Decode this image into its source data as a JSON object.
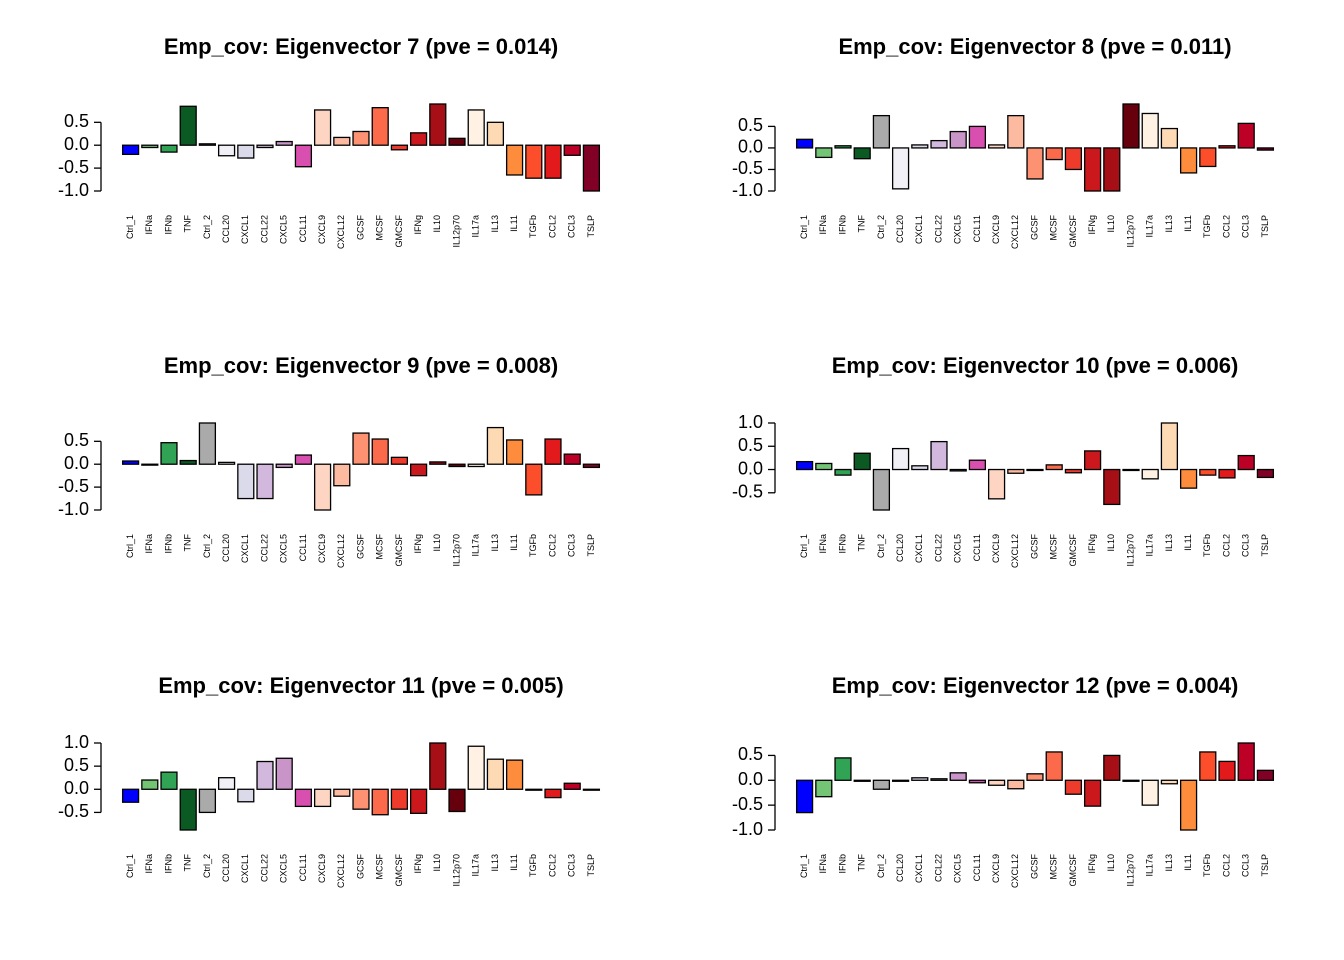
{
  "chart_data": [
    {
      "type": "bar",
      "title": "Emp_cov: Eigenvector 7 (pve = 0.014)",
      "categories": [
        "Ctrl_1",
        "IFNa",
        "IFNb",
        "TNF",
        "Ctrl_2",
        "CCL20",
        "CXCL1",
        "CCL22",
        "CXCL5",
        "CCL11",
        "CXCL9",
        "CXCL12",
        "GCSF",
        "MCSF",
        "GMCSF",
        "IFNg",
        "IL10",
        "IL12p70",
        "IL17a",
        "IL13",
        "IL11",
        "TGFb",
        "CCL2",
        "CCL3",
        "TSLP"
      ],
      "values": [
        -0.2,
        -0.05,
        -0.15,
        0.85,
        0.03,
        -0.23,
        -0.28,
        -0.05,
        0.08,
        -0.47,
        0.77,
        0.17,
        0.3,
        0.82,
        -0.1,
        0.27,
        0.9,
        0.15,
        0.77,
        0.5,
        -0.65,
        -0.72,
        -0.72,
        -0.22,
        -1.0
      ],
      "colors": [
        "#0000ff",
        "#74c476",
        "#31a354",
        "#0b5a24",
        "#aaaaaa",
        "#f2f0f7",
        "#dadaeb",
        "#d2b8dc",
        "#c994c7",
        "#d94fb0",
        "#fdd5c2",
        "#fcbba1",
        "#fc9272",
        "#fb6a4a",
        "#ef3b2c",
        "#cb181d",
        "#a50f15",
        "#67000d",
        "#fff2e4",
        "#fdd9b4",
        "#fd8d3c",
        "#fc4e2a",
        "#e31a1c",
        "#bd0026",
        "#800026"
      ],
      "ylim": [
        -1.0,
        0.9
      ],
      "yticks": [
        {
          "value": -1,
          "label": "-1.0"
        },
        -0.5,
        {
          "value": 0,
          "label": "0.0"
        },
        0.5
      ]
    },
    {
      "type": "bar",
      "title": "Emp_cov: Eigenvector 8 (pve = 0.011)",
      "categories": [
        "Ctrl_1",
        "IFNa",
        "IFNb",
        "TNF",
        "Ctrl_2",
        "CCL20",
        "CXCL1",
        "CCL22",
        "CXCL5",
        "CCL11",
        "CXCL9",
        "CXCL12",
        "GCSF",
        "MCSF",
        "GMCSF",
        "IFNg",
        "IL10",
        "IL12p70",
        "IL17a",
        "IL13",
        "IL11",
        "TGFb",
        "CCL2",
        "CCL3",
        "TSLP"
      ],
      "values": [
        0.2,
        -0.22,
        0.05,
        -0.25,
        0.75,
        -0.95,
        0.07,
        0.17,
        0.38,
        0.5,
        0.07,
        0.75,
        -0.72,
        -0.27,
        -0.5,
        -1.0,
        -1.0,
        1.02,
        0.8,
        0.45,
        -0.58,
        -0.43,
        0.05,
        0.57,
        -0.05
      ],
      "colors": [
        "#0000ff",
        "#74c476",
        "#31a354",
        "#0b5a24",
        "#aaaaaa",
        "#f2f0f7",
        "#dadaeb",
        "#d2b8dc",
        "#c994c7",
        "#d94fb0",
        "#fdd5c2",
        "#fcbba1",
        "#fc9272",
        "#fb6a4a",
        "#ef3b2c",
        "#cb181d",
        "#a50f15",
        "#67000d",
        "#fff2e4",
        "#fdd9b4",
        "#fd8d3c",
        "#fc4e2a",
        "#e31a1c",
        "#bd0026",
        "#800026"
      ],
      "ylim": [
        -1.0,
        1.02
      ],
      "yticks": [
        {
          "value": -1,
          "label": "-1.0"
        },
        -0.5,
        {
          "value": 0,
          "label": "0.0"
        },
        0.5
      ]
    },
    {
      "type": "bar",
      "title": "Emp_cov: Eigenvector 9 (pve = 0.008)",
      "categories": [
        "Ctrl_1",
        "IFNa",
        "IFNb",
        "TNF",
        "Ctrl_2",
        "CCL20",
        "CXCL1",
        "CCL22",
        "CXCL5",
        "CCL11",
        "CXCL9",
        "CXCL12",
        "GCSF",
        "MCSF",
        "GMCSF",
        "IFNg",
        "IL10",
        "IL12p70",
        "IL17a",
        "IL13",
        "IL11",
        "TGFb",
        "CCL2",
        "CCL3",
        "TSLP"
      ],
      "values": [
        0.07,
        -0.02,
        0.47,
        0.08,
        0.9,
        0.04,
        -0.75,
        -0.75,
        -0.07,
        0.2,
        -1.0,
        -0.47,
        0.68,
        0.55,
        0.15,
        -0.25,
        0.05,
        -0.05,
        -0.05,
        0.8,
        0.53,
        -0.67,
        0.55,
        0.22,
        -0.07
      ],
      "colors": [
        "#0000ff",
        "#74c476",
        "#31a354",
        "#0b5a24",
        "#aaaaaa",
        "#f2f0f7",
        "#dadaeb",
        "#d2b8dc",
        "#c994c7",
        "#d94fb0",
        "#fdd5c2",
        "#fcbba1",
        "#fc9272",
        "#fb6a4a",
        "#ef3b2c",
        "#cb181d",
        "#a50f15",
        "#67000d",
        "#fff2e4",
        "#fdd9b4",
        "#fd8d3c",
        "#fc4e2a",
        "#e31a1c",
        "#bd0026",
        "#800026"
      ],
      "ylim": [
        -1.0,
        0.9
      ],
      "yticks": [
        {
          "value": -1,
          "label": "-1.0"
        },
        -0.5,
        {
          "value": 0,
          "label": "0.0"
        },
        0.5
      ]
    },
    {
      "type": "bar",
      "title": "Emp_cov: Eigenvector 10 (pve = 0.006)",
      "categories": [
        "Ctrl_1",
        "IFNa",
        "IFNb",
        "TNF",
        "Ctrl_2",
        "CCL20",
        "CXCL1",
        "CCL22",
        "CXCL5",
        "CCL11",
        "CXCL9",
        "CXCL12",
        "GCSF",
        "MCSF",
        "GMCSF",
        "IFNg",
        "IL10",
        "IL12p70",
        "IL17a",
        "IL13",
        "IL11",
        "TGFb",
        "CCL2",
        "CCL3",
        "TSLP"
      ],
      "values": [
        0.17,
        0.13,
        -0.12,
        0.35,
        -0.87,
        0.45,
        0.08,
        0.6,
        -0.03,
        0.2,
        -0.63,
        -0.08,
        -0.02,
        0.1,
        -0.07,
        0.4,
        -0.75,
        -0.02,
        -0.2,
        1.0,
        -0.4,
        -0.12,
        -0.18,
        0.3,
        -0.17
      ],
      "colors": [
        "#0000ff",
        "#74c476",
        "#31a354",
        "#0b5a24",
        "#aaaaaa",
        "#f2f0f7",
        "#dadaeb",
        "#d2b8dc",
        "#c994c7",
        "#d94fb0",
        "#fdd5c2",
        "#fcbba1",
        "#fc9272",
        "#fb6a4a",
        "#ef3b2c",
        "#cb181d",
        "#a50f15",
        "#67000d",
        "#fff2e4",
        "#fdd9b4",
        "#fd8d3c",
        "#fc4e2a",
        "#e31a1c",
        "#bd0026",
        "#800026"
      ],
      "ylim": [
        -0.87,
        1.0
      ],
      "yticks": [
        -0.5,
        {
          "value": 0,
          "label": "0.0"
        },
        0.5,
        {
          "value": 1,
          "label": "1.0"
        }
      ]
    },
    {
      "type": "bar",
      "title": "Emp_cov: Eigenvector 11 (pve = 0.005)",
      "categories": [
        "Ctrl_1",
        "IFNa",
        "IFNb",
        "TNF",
        "Ctrl_2",
        "CCL20",
        "CXCL1",
        "CCL22",
        "CXCL5",
        "CCL11",
        "CXCL9",
        "CXCL12",
        "GCSF",
        "MCSF",
        "GMCSF",
        "IFNg",
        "IL10",
        "IL12p70",
        "IL17a",
        "IL13",
        "IL11",
        "TGFb",
        "CCL2",
        "CCL3",
        "TSLP"
      ],
      "values": [
        -0.28,
        0.2,
        0.37,
        -0.88,
        -0.5,
        0.25,
        -0.27,
        0.6,
        0.67,
        -0.37,
        -0.37,
        -0.15,
        -0.43,
        -0.55,
        -0.43,
        -0.52,
        1.0,
        -0.48,
        0.93,
        0.65,
        0.63,
        -0.02,
        -0.18,
        0.13,
        -0.02
      ],
      "colors": [
        "#0000ff",
        "#74c476",
        "#31a354",
        "#0b5a24",
        "#aaaaaa",
        "#f2f0f7",
        "#dadaeb",
        "#d2b8dc",
        "#c994c7",
        "#d94fb0",
        "#fdd5c2",
        "#fcbba1",
        "#fc9272",
        "#fb6a4a",
        "#ef3b2c",
        "#cb181d",
        "#a50f15",
        "#67000d",
        "#fff2e4",
        "#fdd9b4",
        "#fd8d3c",
        "#fc4e2a",
        "#e31a1c",
        "#bd0026",
        "#800026"
      ],
      "ylim": [
        -0.88,
        1.0
      ],
      "yticks": [
        -0.5,
        {
          "value": 0,
          "label": "0.0"
        },
        0.5,
        {
          "value": 1,
          "label": "1.0"
        }
      ]
    },
    {
      "type": "bar",
      "title": "Emp_cov: Eigenvector 12 (pve = 0.004)",
      "categories": [
        "Ctrl_1",
        "IFNa",
        "IFNb",
        "TNF",
        "Ctrl_2",
        "CCL20",
        "CXCL1",
        "CCL22",
        "CXCL5",
        "CCL11",
        "CXCL9",
        "CXCL12",
        "GCSF",
        "MCSF",
        "GMCSF",
        "IFNg",
        "IL10",
        "IL12p70",
        "IL17a",
        "IL13",
        "IL11",
        "TGFb",
        "CCL2",
        "CCL3",
        "TSLP"
      ],
      "values": [
        -0.65,
        -0.33,
        0.45,
        -0.02,
        -0.18,
        -0.02,
        0.05,
        0.03,
        0.15,
        -0.05,
        -0.1,
        -0.17,
        0.13,
        0.57,
        -0.28,
        -0.52,
        0.5,
        -0.02,
        -0.5,
        -0.07,
        -1.0,
        0.57,
        0.38,
        0.75,
        0.2
      ],
      "colors": [
        "#0000ff",
        "#74c476",
        "#31a354",
        "#0b5a24",
        "#aaaaaa",
        "#f2f0f7",
        "#dadaeb",
        "#d2b8dc",
        "#c994c7",
        "#d94fb0",
        "#fdd5c2",
        "#fcbba1",
        "#fc9272",
        "#fb6a4a",
        "#ef3b2c",
        "#cb181d",
        "#a50f15",
        "#67000d",
        "#fff2e4",
        "#fdd9b4",
        "#fd8d3c",
        "#fc4e2a",
        "#e31a1c",
        "#bd0026",
        "#800026"
      ],
      "ylim": [
        -1.0,
        0.75
      ],
      "yticks": [
        {
          "value": -1,
          "label": "-1.0"
        },
        -0.5,
        {
          "value": 0,
          "label": "0.0"
        },
        0.5
      ]
    }
  ]
}
